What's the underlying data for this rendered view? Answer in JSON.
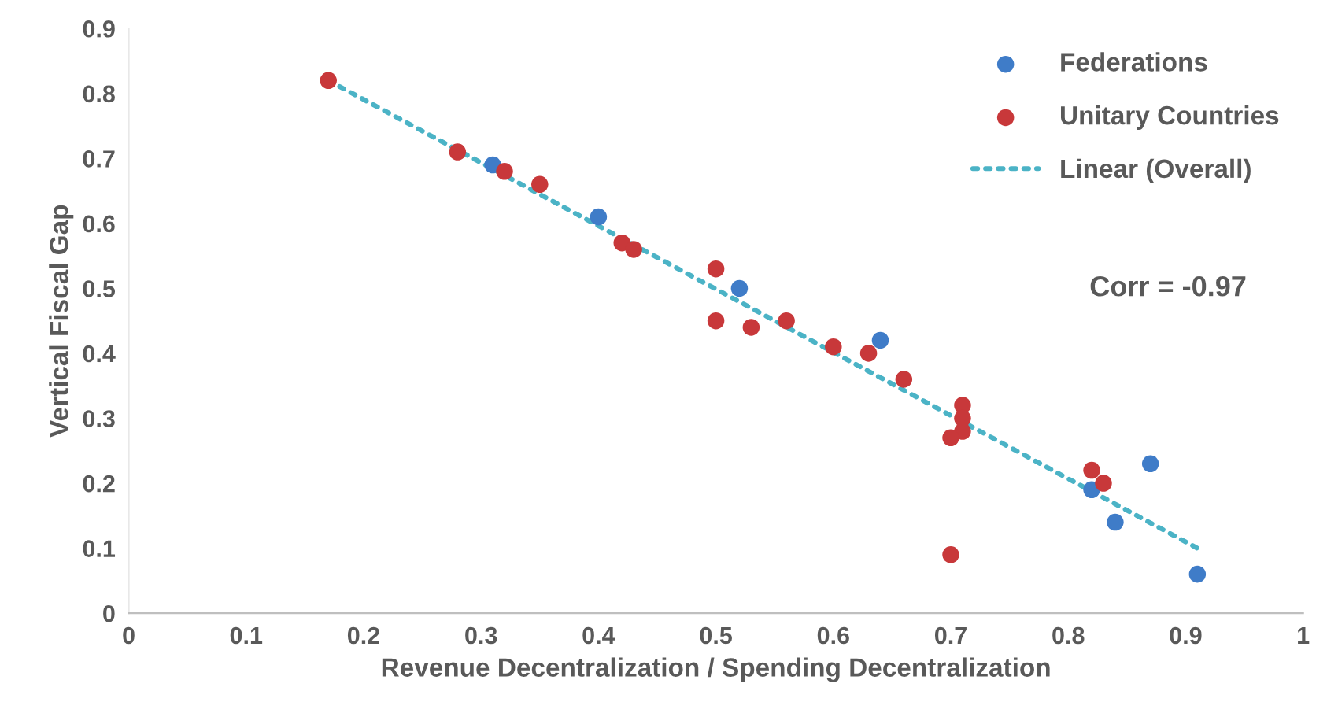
{
  "chart_data": {
    "type": "scatter",
    "xlabel": "Revenue Decentralization / Spending Decentralization",
    "ylabel": "Vertical Fiscal Gap",
    "series": [
      {
        "name": "Federations",
        "color": "#3f7cc8",
        "marker": "circle",
        "x": [
          0.31,
          0.4,
          0.52,
          0.64,
          0.82,
          0.84,
          0.87,
          0.91
        ],
        "values": [
          0.69,
          0.61,
          0.5,
          0.42,
          0.19,
          0.14,
          0.23,
          0.06
        ]
      },
      {
        "name": "Unitary Countries",
        "color": "#c8383a",
        "marker": "circle",
        "x": [
          0.17,
          0.28,
          0.32,
          0.35,
          0.42,
          0.43,
          0.5,
          0.5,
          0.53,
          0.56,
          0.6,
          0.63,
          0.66,
          0.71,
          0.71,
          0.71,
          0.7,
          0.7,
          0.82,
          0.83
        ],
        "values": [
          0.82,
          0.71,
          0.68,
          0.66,
          0.57,
          0.56,
          0.53,
          0.45,
          0.44,
          0.45,
          0.41,
          0.4,
          0.36,
          0.32,
          0.3,
          0.28,
          0.27,
          0.09,
          0.22,
          0.2
        ]
      },
      {
        "name": "Linear (Overall)",
        "type": "line",
        "color": "#4bb3c6",
        "line_style": "dotted",
        "marker": "none",
        "x": [
          0.17,
          0.91
        ],
        "values": [
          0.82,
          0.1
        ]
      }
    ],
    "xlim": [
      0,
      1
    ],
    "ylim": [
      0,
      0.9
    ],
    "xticks": [
      0,
      0.1,
      0.2,
      0.3,
      0.4,
      0.5,
      0.6,
      0.7,
      0.8,
      0.9,
      1
    ],
    "yticks": [
      0,
      0.1,
      0.2,
      0.3,
      0.4,
      0.5,
      0.6,
      0.7,
      0.8,
      0.9
    ],
    "annotations": [
      "Corr = -0.97"
    ],
    "grid": false,
    "legend": "top right"
  }
}
